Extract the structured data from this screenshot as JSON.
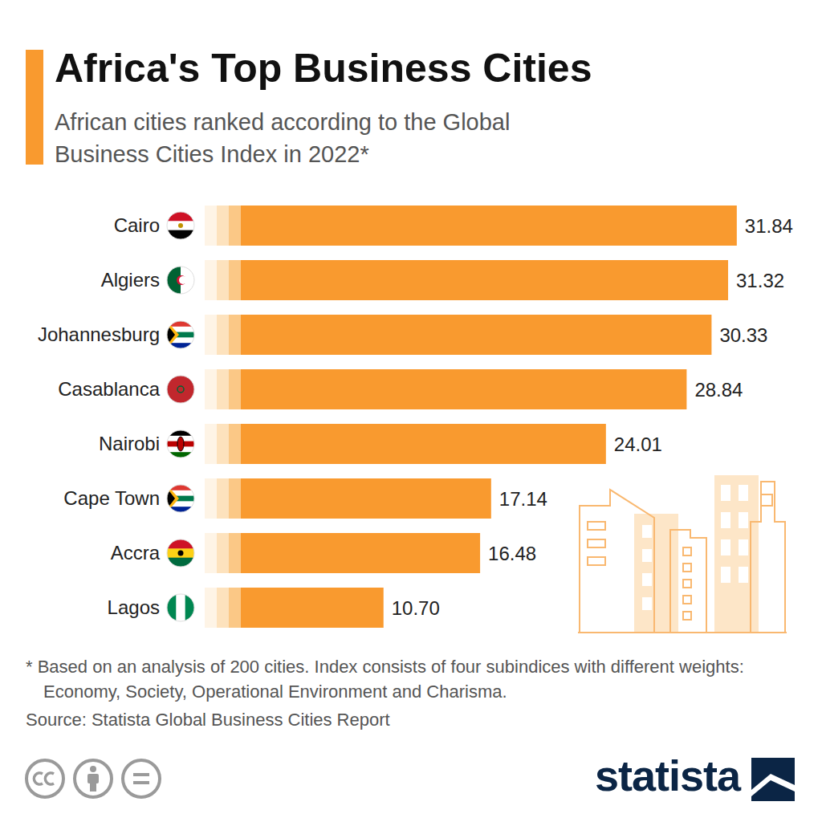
{
  "chart_data": {
    "type": "bar",
    "title": "Africa's Top Business Cities",
    "subtitle": "African cities ranked according to the Global Business Cities Index in 2022*",
    "footnote": "* Based on an analysis of 200 cities. Index consists of four subindices with different weights: Economy, Society, Operational Environment and Charisma.",
    "source": "Source: Statista Global Business Cities Report",
    "logo": "statista",
    "categories": [
      "Cairo",
      "Algiers",
      "Johannesburg",
      "Casablanca",
      "Nairobi",
      "Cape Town",
      "Accra",
      "Lagos"
    ],
    "values": [
      31.84,
      31.32,
      30.33,
      28.84,
      24.01,
      17.14,
      16.48,
      10.7
    ],
    "value_labels": [
      "31.84",
      "31.32",
      "30.33",
      "28.84",
      "24.01",
      "17.14",
      "16.48",
      "10.70"
    ],
    "color": "#f99a2f",
    "orientation": "horizontal",
    "xlim": [
      0,
      33
    ],
    "data_labels": true,
    "tick_labels": "y",
    "grid": false
  }
}
